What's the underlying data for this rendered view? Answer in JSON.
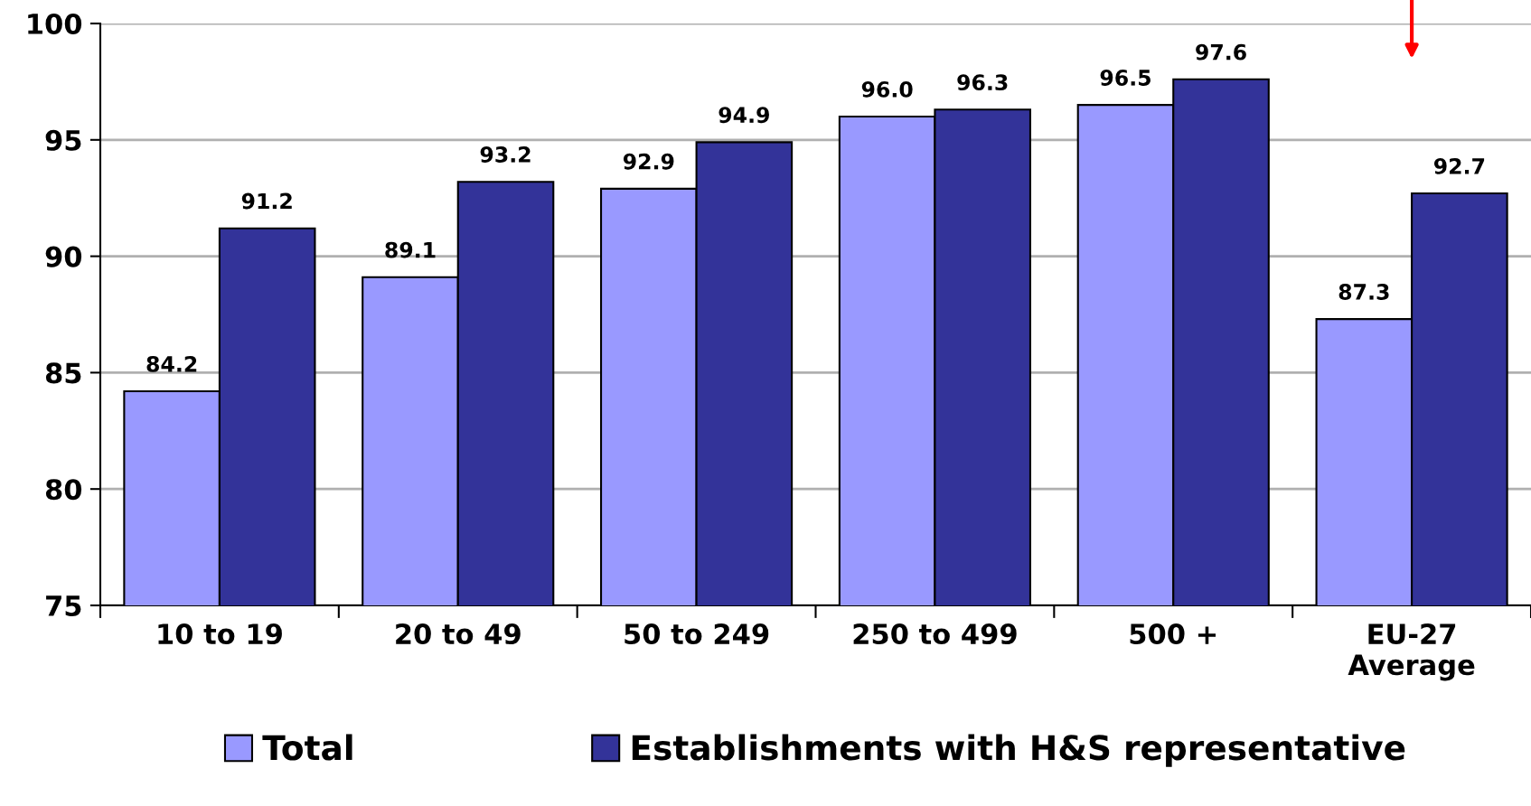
{
  "chart_data": {
    "type": "bar",
    "categories": [
      "10 to 19",
      "20 to 49",
      "50 to 249",
      "250 to 499",
      "500 +",
      "EU-27\nAverage"
    ],
    "series": [
      {
        "name": "Total",
        "color": "#9999ff",
        "values": [
          84.2,
          89.1,
          92.9,
          96.0,
          96.5,
          87.3
        ],
        "value_labels": [
          "84.2",
          "89.1",
          "92.9",
          "96.0",
          "96.5",
          "87.3"
        ]
      },
      {
        "name": "Establishments with H&S representative",
        "color": "#333399",
        "values": [
          91.2,
          93.2,
          94.9,
          96.3,
          97.6,
          92.7
        ],
        "value_labels": [
          "91.2",
          "93.2",
          "94.9",
          "96.3",
          "97.6",
          "92.7"
        ]
      }
    ],
    "ylim": [
      75,
      100
    ],
    "yticks": [
      75,
      80,
      85,
      90,
      95,
      100
    ],
    "grid": "y",
    "legend": "bottom",
    "tick_labels": true
  }
}
